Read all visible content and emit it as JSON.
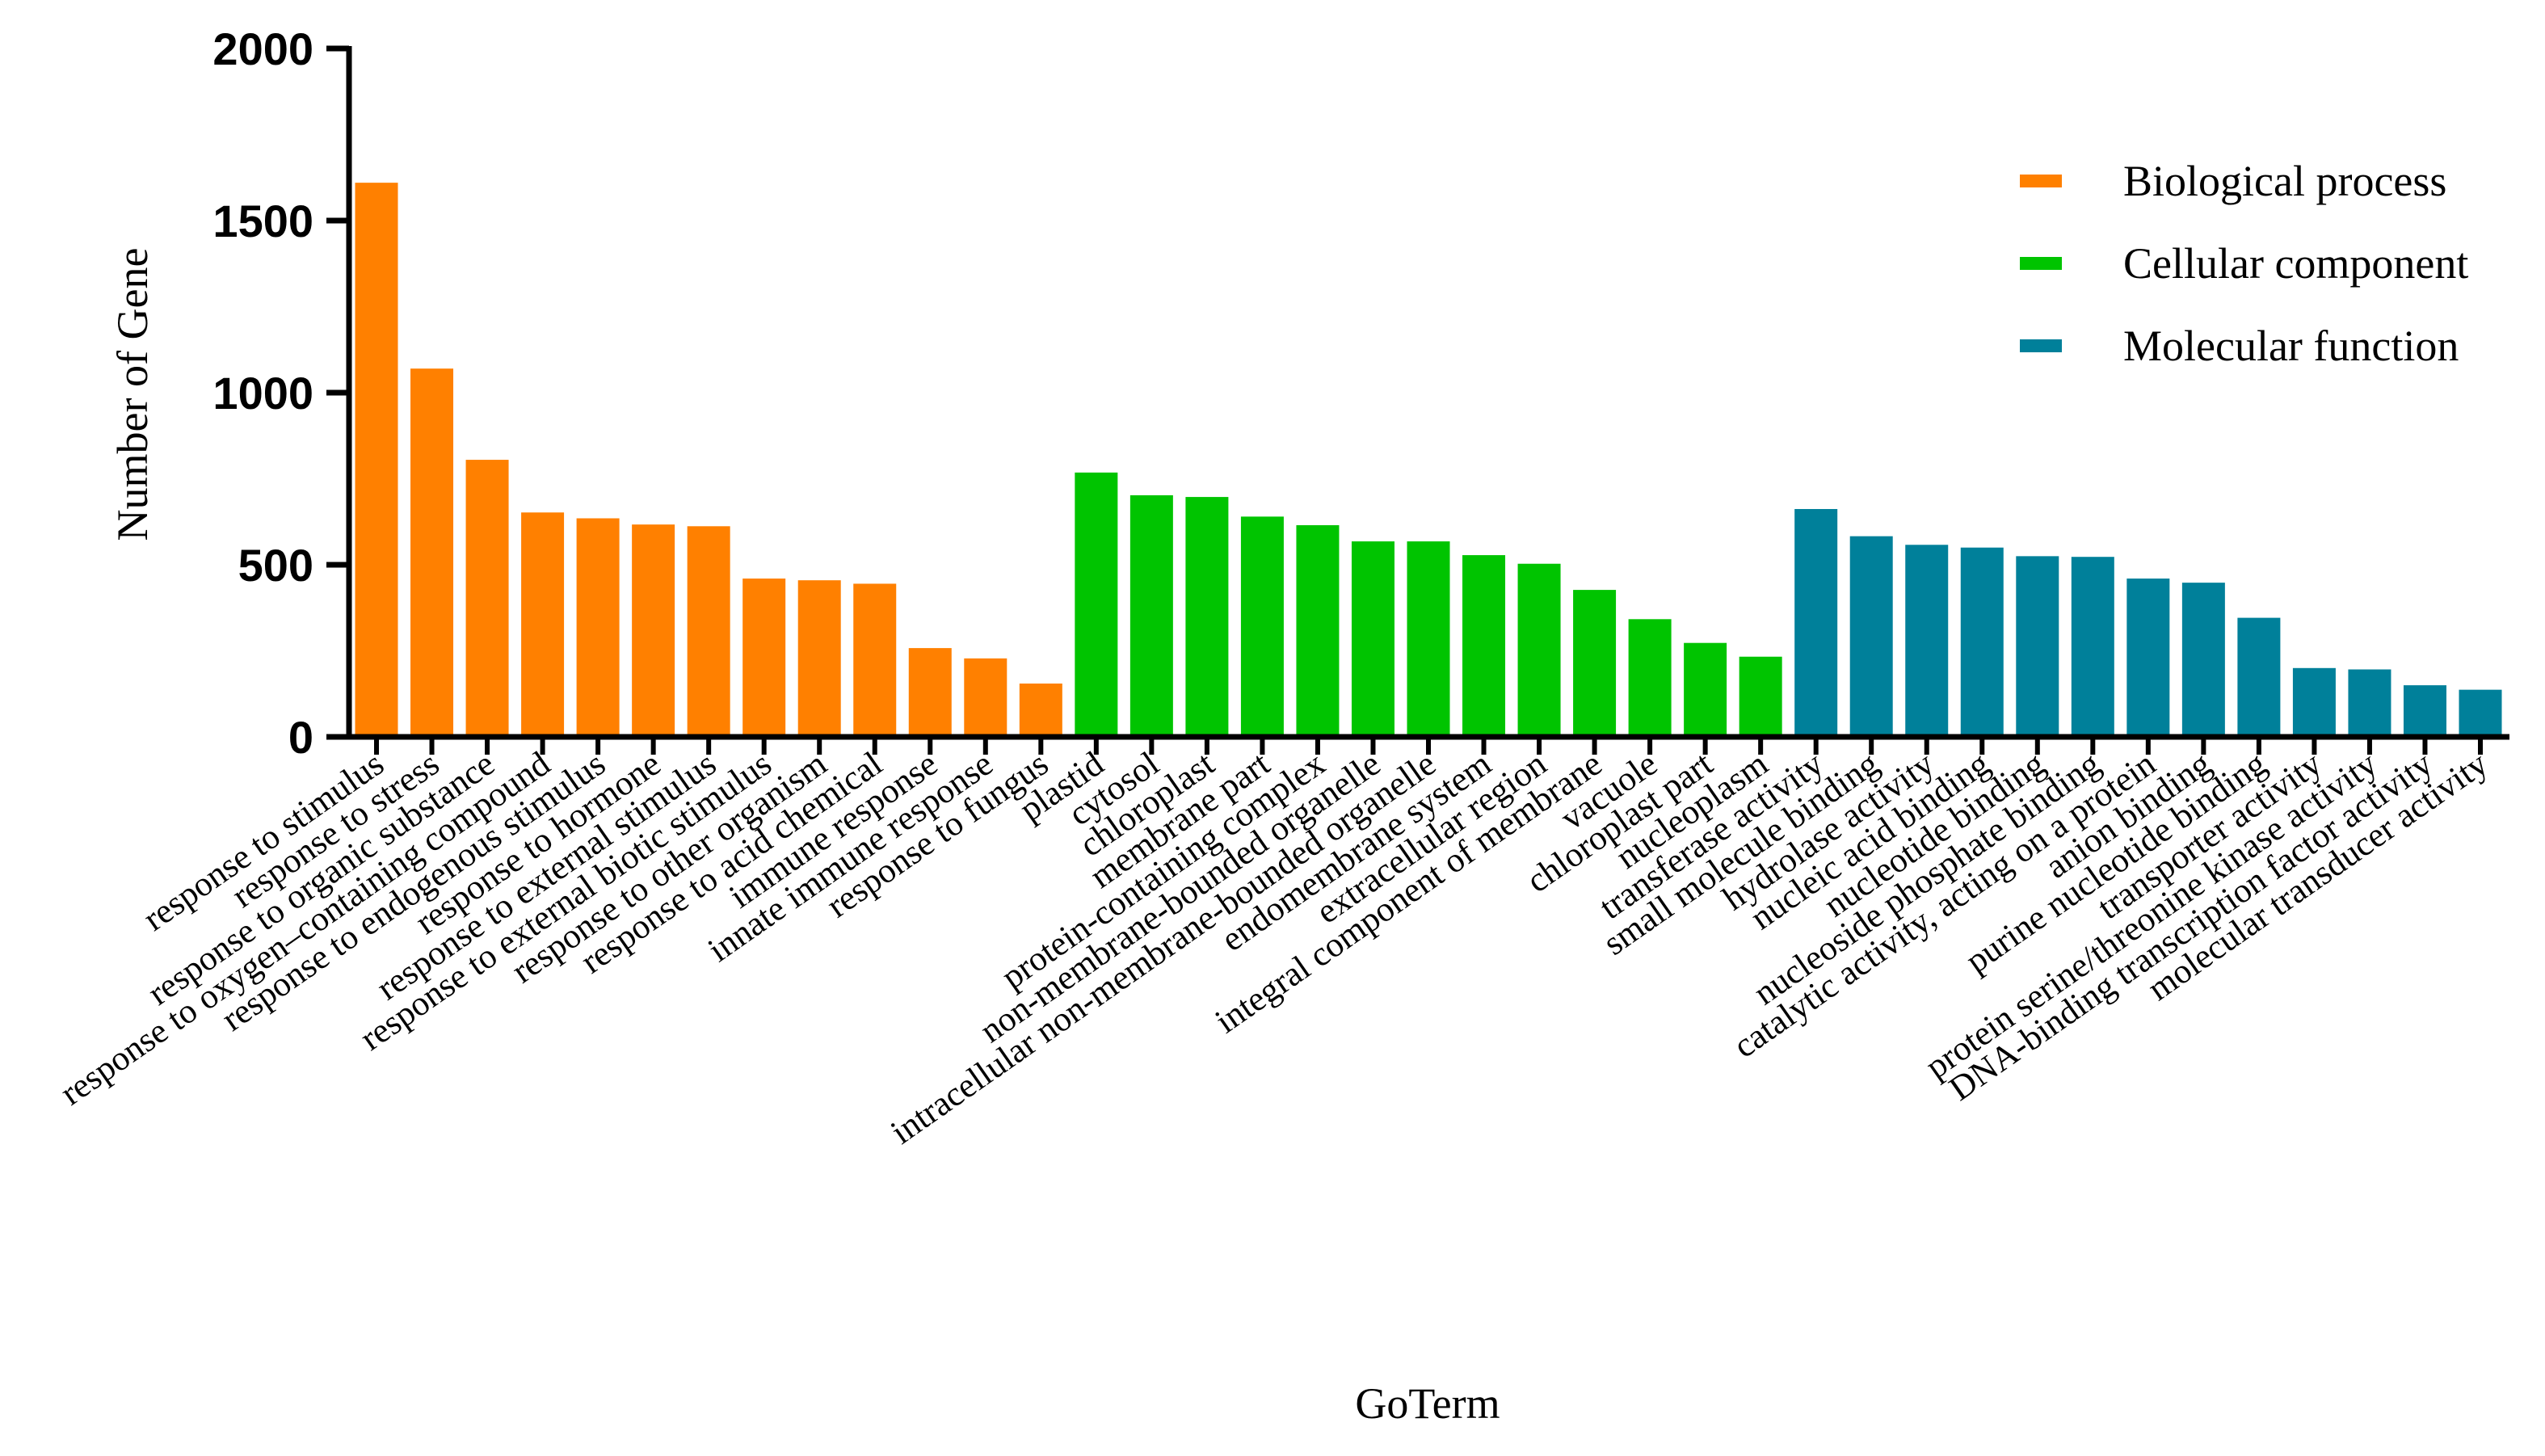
{
  "chart_data": {
    "type": "bar",
    "title": "",
    "xlabel": "GoTerm",
    "ylabel": "Number of Gene",
    "ylim": [
      0,
      2000
    ],
    "yticks": [
      0,
      500,
      1000,
      1500,
      2000
    ],
    "grid": false,
    "legend_position": "top-right",
    "colors": {
      "Biological process": "#ff8000",
      "Cellular component": "#00c400",
      "Molecular function": "#00809a"
    },
    "series": [
      {
        "name": "Biological process",
        "categories": [
          "response to stimulus",
          "response to stress",
          "response to organic substance",
          "response to oxygen–containing compound",
          "response to endogenous stimulus",
          "response to hormone",
          "response to external stimulus",
          "response to external biotic stimulus",
          "response to other organism",
          "response to acid chemical",
          "immune response",
          "innate immune response",
          "response to fungus"
        ],
        "values": [
          1610,
          1070,
          805,
          652,
          635,
          617,
          612,
          460,
          455,
          445,
          258,
          228,
          155
        ]
      },
      {
        "name": "Cellular component",
        "categories": [
          "plastid",
          "cytosol",
          "chloroplast",
          "membrane part",
          "protein-containing complex",
          "non-membrane-bounded organelle",
          "intracellular non-membrane-bounded organelle",
          "endomembrane system",
          "extracellular region",
          "integral component of membrane",
          "vacuole",
          "chloroplast part",
          "nucleoplasm"
        ],
        "values": [
          768,
          702,
          697,
          640,
          615,
          568,
          568,
          528,
          503,
          427,
          342,
          273,
          233
        ]
      },
      {
        "name": "Molecular function",
        "categories": [
          "transferase activity",
          "small molecule binding",
          "hydrolase activity",
          "nucleic acid binding",
          "nucleotide binding",
          "nucleoside phosphate binding",
          "catalytic activity, acting on a protein",
          "anion binding",
          "purine nucleotide binding",
          "transporter activity",
          "protein serine/threonine kinase activity",
          "DNA-binding transcription factor activity",
          "molecular transducer activity"
        ],
        "values": [
          662,
          583,
          558,
          550,
          525,
          523,
          460,
          448,
          346,
          200,
          196,
          150,
          137
        ]
      }
    ]
  }
}
